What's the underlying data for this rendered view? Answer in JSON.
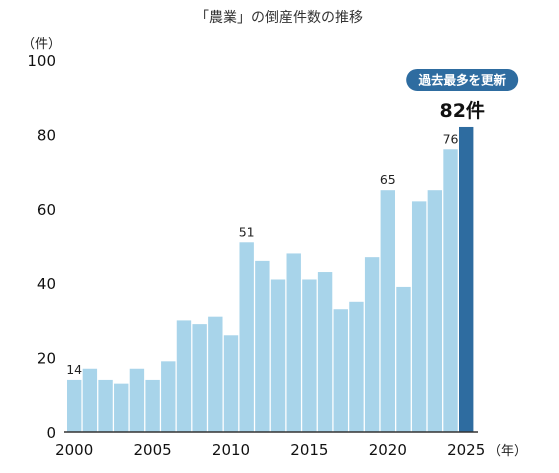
{
  "chart_data": {
    "type": "bar",
    "title": "「農業」の倒産件数の推移",
    "ylabel_unit": "（件）",
    "xlabel_unit": "（年）",
    "ylim": [
      0,
      100
    ],
    "yticks": [
      "0",
      "20",
      "40",
      "60",
      "80",
      "100"
    ],
    "xticks": [
      "2000",
      "2005",
      "2010",
      "2015",
      "2020",
      "2025"
    ],
    "categories": [
      "2000",
      "2001",
      "2002",
      "2003",
      "2004",
      "2005",
      "2006",
      "2007",
      "2008",
      "2009",
      "2010",
      "2011",
      "2012",
      "2013",
      "2014",
      "2015",
      "2016",
      "2017",
      "2018",
      "2019",
      "2020",
      "2021",
      "2022",
      "2023",
      "2024",
      "2025"
    ],
    "values": [
      14,
      17,
      14,
      13,
      17,
      14,
      19,
      30,
      29,
      31,
      26,
      51,
      46,
      41,
      48,
      41,
      43,
      33,
      35,
      47,
      65,
      39,
      62,
      65,
      76,
      82
    ],
    "data_labels": [
      {
        "category": "2000",
        "text": "14"
      },
      {
        "category": "2011",
        "text": "51"
      },
      {
        "category": "2020",
        "text": "65"
      },
      {
        "category": "2024",
        "text": "76"
      }
    ],
    "highlight": {
      "category": "2025",
      "label": "82件",
      "badge": "過去最多を更新"
    },
    "colors": {
      "bar": "#a8d4ea",
      "highlight": "#2e6ca0",
      "badge": "#2e6ca0",
      "axis": "#333333"
    },
    "grid": false
  }
}
